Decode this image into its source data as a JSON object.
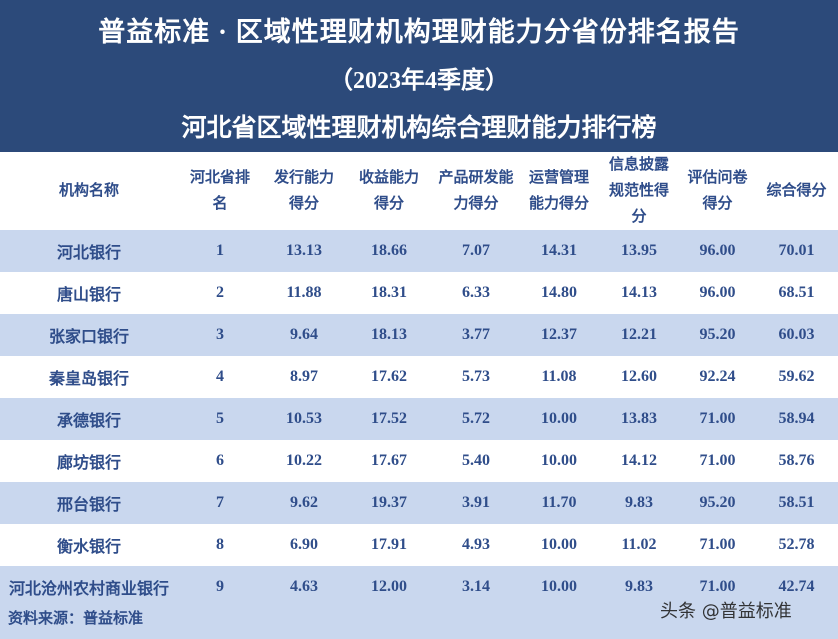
{
  "header": {
    "title": "普益标准 · 区域性理财机构理财能力分省份排名报告",
    "period": "（2023年4季度）",
    "subtitle": "河北省区域性理财机构综合理财能力排行榜"
  },
  "table": {
    "columns": [
      "机构名称",
      "河北省排名",
      "发行能力得分",
      "收益能力得分",
      "产品研发能力得分",
      "运营管理能力得分",
      "信息披露规范性得分",
      "评估问卷得分",
      "综合得分"
    ],
    "rows": [
      [
        "河北银行",
        "1",
        "13.13",
        "18.66",
        "7.07",
        "14.31",
        "13.95",
        "96.00",
        "70.01"
      ],
      [
        "唐山银行",
        "2",
        "11.88",
        "18.31",
        "6.33",
        "14.80",
        "14.13",
        "96.00",
        "68.51"
      ],
      [
        "张家口银行",
        "3",
        "9.64",
        "18.13",
        "3.77",
        "12.37",
        "12.21",
        "95.20",
        "60.03"
      ],
      [
        "秦皇岛银行",
        "4",
        "8.97",
        "17.62",
        "5.73",
        "11.08",
        "12.60",
        "92.24",
        "59.62"
      ],
      [
        "承德银行",
        "5",
        "10.53",
        "17.52",
        "5.72",
        "10.00",
        "13.83",
        "71.00",
        "58.94"
      ],
      [
        "廊坊银行",
        "6",
        "10.22",
        "17.67",
        "5.40",
        "10.00",
        "14.12",
        "71.00",
        "58.76"
      ],
      [
        "邢台银行",
        "7",
        "9.62",
        "19.37",
        "3.91",
        "11.70",
        "9.83",
        "95.20",
        "58.51"
      ],
      [
        "衡水银行",
        "8",
        "6.90",
        "17.91",
        "4.93",
        "10.00",
        "11.02",
        "71.00",
        "52.78"
      ],
      [
        "河北沧州农村商业银行",
        "9",
        "4.63",
        "12.00",
        "3.14",
        "10.00",
        "9.83",
        "71.00",
        "42.74"
      ]
    ]
  },
  "footer": {
    "source": "资料来源：普益标准",
    "watermark": "头条 @普益标准"
  }
}
